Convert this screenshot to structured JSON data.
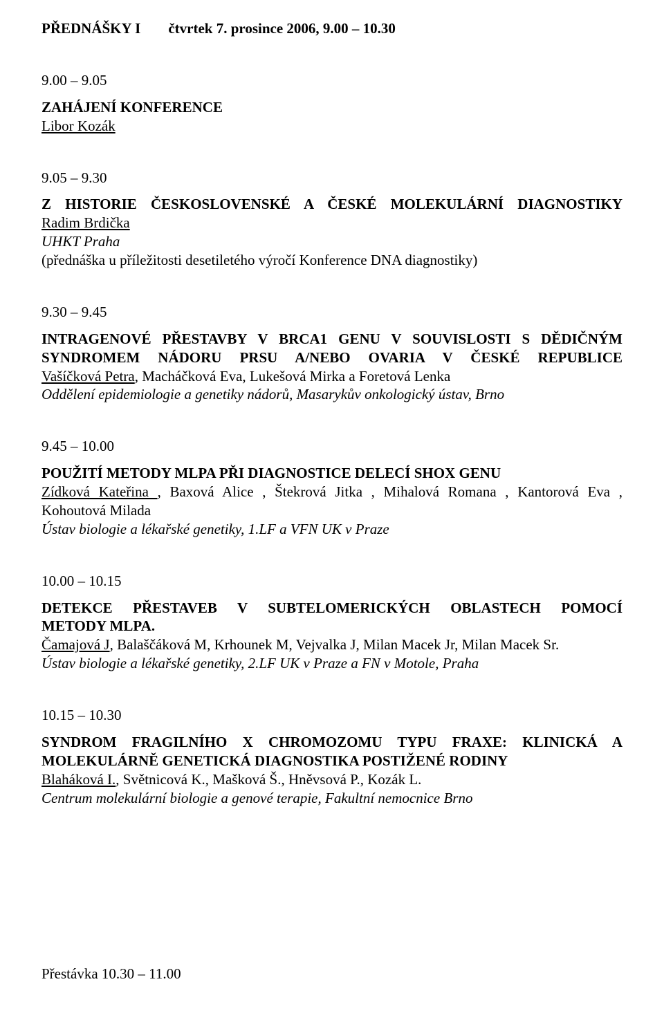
{
  "header": {
    "session": "PŘEDNÁŠKY I",
    "datetime": "čtvrtek 7. prosince 2006,  9.00 – 10.30"
  },
  "items": [
    {
      "time": "9.00 – 9.05",
      "title": "ZAHÁJENÍ KONFERENCE",
      "presenter": "Libor Kozák"
    },
    {
      "time": "9.05 – 9.30",
      "title_line1": "Z  HISTORIE  ČESKOSLOVENSKÉ  A  ČESKÉ  MOLEKULÁRNÍ  DIAGNOSTIKY",
      "presenter": "Radim Brdička",
      "affil": "UHKT Praha",
      "note": "(přednáška u příležitosti desetiletého výročí Konference DNA diagnostiky)"
    },
    {
      "time": "9.30 – 9.45",
      "title_line1": "INTRAGENOVÉ  PŘESTAVBY  V BRCA1  GENU  V SOUVISLOSTI  S DĚDIČNÝM",
      "title_line2": "SYNDROMEM  NÁDORU  PRSU  A/NEBO  OVARIA  V  ČESKÉ  REPUBLICE",
      "presenter": "Vašíčková Petra",
      "authors_tail": ", Macháčková Eva, Lukešová Mirka a Foretová Lenka",
      "affil": "Oddělení epidemiologie a genetiky nádorů, Masarykův onkologický ústav, Brno"
    },
    {
      "time": "9.45 – 10.00",
      "title_line1": "POUŽITÍ METODY MLPA PŘI DIAGNOSTICE DELECÍ SHOX GENU",
      "presenter": "Zídková Kateřina ",
      "authors_tail1": ", Baxová Alice , Štekrová Jitka , Mihalová Romana , Kantorová Eva ,",
      "authors_tail2": "Kohoutová Milada",
      "affil": "Ústav biologie a lékařské genetiky, 1.LF a VFN UK v Praze"
    },
    {
      "time": "10.00 – 10.15",
      "title_line1": "DETEKCE   PŘESTAVEB   V   SUBTELOMERICKÝCH   OBLASTECH   POMOCÍ",
      "title_line2": "METODY  MLPA.",
      "presenter": "Čamajová J",
      "authors_tail": ", Balaščáková M, Krhounek M, Vejvalka J, Milan Macek Jr, Milan Macek Sr.",
      "affil": "Ústav biologie a lékařské genetiky, 2.LF UK v Praze a FN v Motole, Praha"
    },
    {
      "time": "10.15 – 10.30",
      "title_line1": "SYNDROM  FRAGILNÍHO  X  CHROMOZOMU  TYPU  FRAXE:  KLINICKÁ  A",
      "title_line2": "MOLEKULÁRNĚ  GENETICKÁ  DIAGNOSTIKA  POSTIŽENÉ  RODINY",
      "presenter": "Blaháková I.",
      "authors_tail": ", Světnicová K., Mašková Š., Hněvsová P., Kozák L.",
      "affil": "Centrum molekulární biologie a genové terapie, Fakultní nemocnice Brno"
    }
  ],
  "footer": "Přestávka 10.30 – 11.00"
}
